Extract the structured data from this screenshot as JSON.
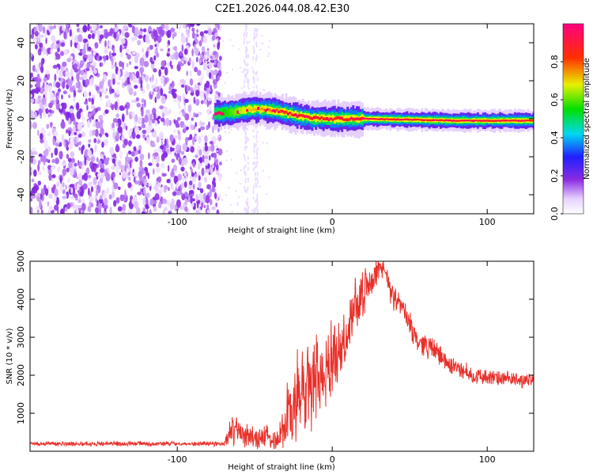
{
  "title": "C2E1.2026.044.08.42.E30",
  "chart_data": [
    {
      "type": "heatmap",
      "xlabel": "Height of straight line (km)",
      "ylabel": "Frequency (Hz)",
      "xlim": [
        -195,
        130
      ],
      "ylim": [
        -50,
        50
      ],
      "xticks": [
        -100,
        0,
        100
      ],
      "xtick_labels": [
        "-100",
        "0",
        "100"
      ],
      "yticks": [
        40,
        20,
        0,
        -20,
        -40
      ],
      "ytick_labels": [
        "40",
        "20",
        "0",
        "-20",
        "-40"
      ],
      "colorbar": {
        "label": "Normalized spectral amplitude",
        "ticks": [
          0.0,
          0.2,
          0.4,
          0.6,
          0.8
        ],
        "tick_labels": [
          "0.0",
          "0.2",
          "0.4",
          "0.6",
          "0.8"
        ],
        "range": [
          0,
          1
        ],
        "colormap": "rainbow (white-violet-blue-cyan-green-yellow-red-magenta)"
      },
      "noise_region": {
        "x_range": [
          -195,
          -75
        ],
        "freq_range": [
          -50,
          50
        ],
        "amplitude": 0.1
      },
      "ridge": [
        {
          "x": -75,
          "f": 3,
          "amp": 0.5
        },
        {
          "x": -65,
          "f": 3.5,
          "amp": 0.6
        },
        {
          "x": -55,
          "f": 5,
          "amp": 0.7
        },
        {
          "x": -45,
          "f": 5,
          "amp": 0.75
        },
        {
          "x": -35,
          "f": 4,
          "amp": 0.8
        },
        {
          "x": -25,
          "f": 2,
          "amp": 0.85
        },
        {
          "x": -15,
          "f": 0.5,
          "amp": 0.9
        },
        {
          "x": 0,
          "f": 0,
          "amp": 0.95
        },
        {
          "x": 20,
          "f": 0,
          "amp": 0.95
        },
        {
          "x": 50,
          "f": -0.5,
          "amp": 0.95
        },
        {
          "x": 80,
          "f": -1,
          "amp": 0.95
        },
        {
          "x": 100,
          "f": -1,
          "amp": 0.9
        },
        {
          "x": 130,
          "f": -1,
          "amp": 0.9
        }
      ]
    },
    {
      "type": "line",
      "xlabel": "Height of straight line (km)",
      "ylabel": "SNR (10 * v/v)",
      "xlim": [
        -195,
        130
      ],
      "ylim": [
        0,
        5000
      ],
      "xticks": [
        -100,
        0,
        100
      ],
      "xtick_labels": [
        "-100",
        "0",
        "100"
      ],
      "yticks": [
        1000,
        2000,
        3000,
        4000,
        5000
      ],
      "ytick_labels": [
        "1000",
        "2000",
        "3000",
        "4000",
        "5000"
      ],
      "color": "#e8302a",
      "envelope": [
        {
          "x": -195,
          "base": 200,
          "amp": 60
        },
        {
          "x": -70,
          "base": 200,
          "amp": 60
        },
        {
          "x": -65,
          "base": 550,
          "amp": 400
        },
        {
          "x": -50,
          "base": 350,
          "amp": 350
        },
        {
          "x": -35,
          "base": 350,
          "amp": 300
        },
        {
          "x": -25,
          "base": 1200,
          "amp": 1200
        },
        {
          "x": -15,
          "base": 1700,
          "amp": 1300
        },
        {
          "x": -5,
          "base": 2000,
          "amp": 900
        },
        {
          "x": 5,
          "base": 2700,
          "amp": 700
        },
        {
          "x": 15,
          "base": 3700,
          "amp": 600
        },
        {
          "x": 25,
          "base": 4500,
          "amp": 400
        },
        {
          "x": 33,
          "base": 4900,
          "amp": 250
        },
        {
          "x": 38,
          "base": 4100,
          "amp": 300
        },
        {
          "x": 45,
          "base": 3800,
          "amp": 300
        },
        {
          "x": 55,
          "base": 2900,
          "amp": 300
        },
        {
          "x": 65,
          "base": 2700,
          "amp": 300
        },
        {
          "x": 75,
          "base": 2300,
          "amp": 250
        },
        {
          "x": 90,
          "base": 2000,
          "amp": 220
        },
        {
          "x": 110,
          "base": 1900,
          "amp": 200
        },
        {
          "x": 130,
          "base": 1850,
          "amp": 200
        }
      ]
    }
  ]
}
